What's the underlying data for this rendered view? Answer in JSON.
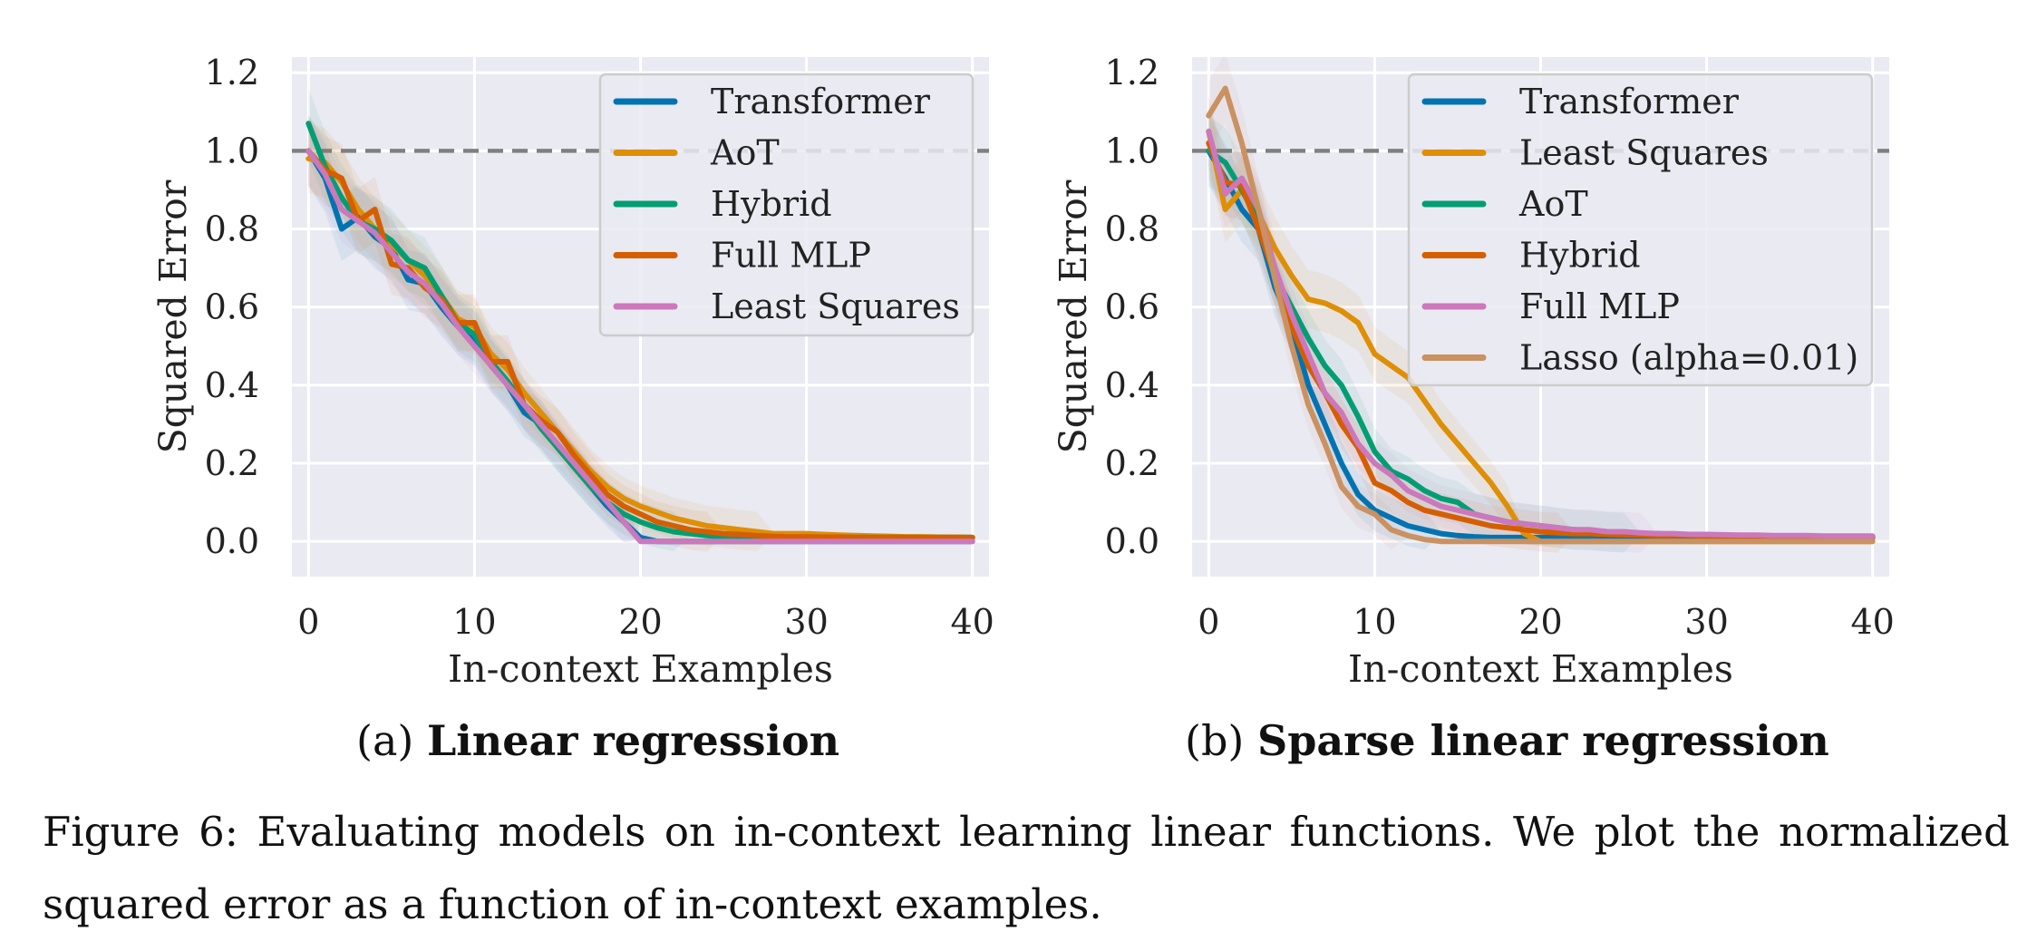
{
  "figure_caption": "Figure 6: Evaluating models on in-context learning linear functions. We plot the normalized squared error as a function of in-context examples.",
  "colors": {
    "background": "#EAEAF2",
    "grid": "#FFFFFF",
    "blue": "#0173B2",
    "orange": "#DE8F05",
    "green": "#029E73",
    "red_orange": "#D55E00",
    "pink": "#CC78BC",
    "tan": "#CA9161",
    "baseline": "#808080"
  },
  "chart_data": [
    {
      "type": "line",
      "panel_label": "(a)",
      "subtitle": "Linear regression",
      "xlabel": "In-context Examples",
      "ylabel": "Squared Error",
      "xlim": [
        -1,
        41
      ],
      "ylim": [
        -0.09,
        1.24
      ],
      "xticks": [
        0,
        10,
        20,
        30,
        40
      ],
      "yticks": [
        0.0,
        0.2,
        0.4,
        0.6,
        0.8,
        1.0,
        1.2
      ],
      "grid": true,
      "legend_position": "top-right",
      "reference_line": {
        "y": 1.0,
        "style": "dashed"
      },
      "x": [
        0,
        1,
        2,
        3,
        4,
        5,
        6,
        7,
        8,
        9,
        10,
        11,
        12,
        13,
        14,
        15,
        16,
        17,
        18,
        19,
        20,
        21,
        22,
        23,
        24,
        25,
        26,
        27,
        28,
        29,
        30,
        31,
        32,
        33,
        34,
        35,
        36,
        37,
        38,
        39,
        40
      ],
      "series": [
        {
          "name": "Transformer",
          "color": "#0173B2",
          "values": [
            1.0,
            0.93,
            0.8,
            0.83,
            0.78,
            0.75,
            0.67,
            0.66,
            0.6,
            0.55,
            0.52,
            0.45,
            0.4,
            0.33,
            0.3,
            0.24,
            0.19,
            0.14,
            0.09,
            0.05,
            0.01,
            0.0,
            0.0,
            0.0,
            0.0,
            0.0,
            0.0,
            0.0,
            0.0,
            0.0,
            0.0,
            0.0,
            0.0,
            0.0,
            0.0,
            0.0,
            0.0,
            0.0,
            0.0,
            0.0,
            0.0
          ]
        },
        {
          "name": "AoT",
          "color": "#DE8F05",
          "values": [
            0.98,
            0.97,
            0.92,
            0.85,
            0.8,
            0.76,
            0.72,
            0.68,
            0.63,
            0.57,
            0.55,
            0.48,
            0.44,
            0.38,
            0.33,
            0.28,
            0.23,
            0.18,
            0.14,
            0.11,
            0.09,
            0.075,
            0.06,
            0.05,
            0.04,
            0.035,
            0.03,
            0.025,
            0.02,
            0.02,
            0.02,
            0.018,
            0.016,
            0.015,
            0.014,
            0.013,
            0.012,
            0.012,
            0.011,
            0.011,
            0.01
          ]
        },
        {
          "name": "Hybrid",
          "color": "#029E73",
          "values": [
            1.07,
            0.96,
            0.88,
            0.82,
            0.8,
            0.77,
            0.72,
            0.7,
            0.63,
            0.56,
            0.53,
            0.46,
            0.41,
            0.35,
            0.29,
            0.24,
            0.19,
            0.14,
            0.1,
            0.07,
            0.05,
            0.035,
            0.025,
            0.02,
            0.015,
            0.012,
            0.01,
            0.01,
            0.01,
            0.01,
            0.01,
            0.01,
            0.01,
            0.01,
            0.01,
            0.01,
            0.01,
            0.01,
            0.01,
            0.01,
            0.01
          ]
        },
        {
          "name": "Full MLP",
          "color": "#D55E00",
          "values": [
            1.0,
            0.95,
            0.93,
            0.82,
            0.85,
            0.71,
            0.7,
            0.65,
            0.62,
            0.56,
            0.56,
            0.46,
            0.46,
            0.35,
            0.31,
            0.28,
            0.22,
            0.17,
            0.12,
            0.09,
            0.07,
            0.05,
            0.04,
            0.03,
            0.025,
            0.02,
            0.018,
            0.015,
            0.013,
            0.012,
            0.012,
            0.011,
            0.011,
            0.01,
            0.01,
            0.01,
            0.01,
            0.01,
            0.01,
            0.01,
            0.01
          ]
        },
        {
          "name": "Least Squares",
          "color": "#CC78BC",
          "values": [
            1.0,
            0.94,
            0.85,
            0.82,
            0.79,
            0.74,
            0.69,
            0.66,
            0.61,
            0.55,
            0.5,
            0.45,
            0.4,
            0.35,
            0.3,
            0.25,
            0.2,
            0.15,
            0.1,
            0.05,
            0.0,
            0.0,
            0.0,
            0.0,
            0.0,
            0.0,
            0.0,
            0.0,
            0.0,
            0.0,
            0.0,
            0.0,
            0.0,
            0.0,
            0.0,
            0.0,
            0.0,
            0.0,
            0.0,
            0.0,
            0.0
          ]
        }
      ]
    },
    {
      "type": "line",
      "panel_label": "(b)",
      "subtitle": "Sparse linear regression",
      "xlabel": "In-context Examples",
      "ylabel": "Squared Error",
      "xlim": [
        -1,
        41
      ],
      "ylim": [
        -0.09,
        1.24
      ],
      "xticks": [
        0,
        10,
        20,
        30,
        40
      ],
      "yticks": [
        0.0,
        0.2,
        0.4,
        0.6,
        0.8,
        1.0,
        1.2
      ],
      "grid": true,
      "legend_position": "top-right",
      "reference_line": {
        "y": 1.0,
        "style": "dashed"
      },
      "x": [
        0,
        1,
        2,
        3,
        4,
        5,
        6,
        7,
        8,
        9,
        10,
        11,
        12,
        13,
        14,
        15,
        16,
        17,
        18,
        19,
        20,
        21,
        22,
        23,
        24,
        25,
        26,
        27,
        28,
        29,
        30,
        31,
        32,
        33,
        34,
        35,
        36,
        37,
        38,
        39,
        40
      ],
      "series": [
        {
          "name": "Transformer",
          "color": "#0173B2",
          "values": [
            1.0,
            0.93,
            0.85,
            0.8,
            0.65,
            0.55,
            0.4,
            0.3,
            0.2,
            0.12,
            0.08,
            0.06,
            0.04,
            0.03,
            0.02,
            0.015,
            0.012,
            0.01,
            0.01,
            0.01,
            0.01,
            0.01,
            0.01,
            0.01,
            0.01,
            0.01,
            0.01,
            0.01,
            0.01,
            0.01,
            0.01,
            0.01,
            0.01,
            0.01,
            0.01,
            0.01,
            0.01,
            0.01,
            0.01,
            0.01,
            0.01
          ]
        },
        {
          "name": "Least Squares",
          "color": "#DE8F05",
          "values": [
            1.05,
            0.85,
            0.9,
            0.84,
            0.75,
            0.68,
            0.62,
            0.61,
            0.59,
            0.56,
            0.48,
            0.45,
            0.42,
            0.36,
            0.3,
            0.25,
            0.2,
            0.15,
            0.09,
            0.02,
            0.0,
            0.0,
            0.0,
            0.0,
            0.0,
            0.0,
            0.0,
            0.0,
            0.0,
            0.0,
            0.0,
            0.0,
            0.0,
            0.0,
            0.0,
            0.0,
            0.0,
            0.0,
            0.0,
            0.0,
            0.0
          ]
        },
        {
          "name": "AoT",
          "color": "#029E73",
          "values": [
            1.0,
            0.97,
            0.9,
            0.82,
            0.68,
            0.6,
            0.52,
            0.45,
            0.4,
            0.32,
            0.23,
            0.18,
            0.16,
            0.13,
            0.11,
            0.1,
            0.07,
            0.06,
            0.05,
            0.045,
            0.04,
            0.035,
            0.03,
            0.028,
            0.025,
            0.022,
            0.02,
            0.02,
            0.018,
            0.017,
            0.016,
            0.015,
            0.015,
            0.015,
            0.014,
            0.014,
            0.013,
            0.013,
            0.013,
            0.012,
            0.012
          ]
        },
        {
          "name": "Hybrid",
          "color": "#D55E00",
          "values": [
            1.02,
            0.92,
            0.91,
            0.8,
            0.68,
            0.55,
            0.45,
            0.38,
            0.3,
            0.24,
            0.15,
            0.13,
            0.1,
            0.08,
            0.07,
            0.06,
            0.05,
            0.04,
            0.035,
            0.03,
            0.025,
            0.022,
            0.02,
            0.02,
            0.018,
            0.017,
            0.016,
            0.015,
            0.015,
            0.015,
            0.014,
            0.014,
            0.013,
            0.013,
            0.013,
            0.012,
            0.012,
            0.012,
            0.012,
            0.012,
            0.012
          ]
        },
        {
          "name": "Full MLP",
          "color": "#CC78BC",
          "values": [
            1.05,
            0.89,
            0.93,
            0.85,
            0.7,
            0.58,
            0.48,
            0.38,
            0.33,
            0.25,
            0.2,
            0.17,
            0.13,
            0.11,
            0.09,
            0.08,
            0.07,
            0.06,
            0.05,
            0.045,
            0.04,
            0.035,
            0.03,
            0.03,
            0.025,
            0.025,
            0.022,
            0.02,
            0.02,
            0.018,
            0.018,
            0.017,
            0.016,
            0.016,
            0.015,
            0.015,
            0.015,
            0.014,
            0.014,
            0.014,
            0.014
          ]
        },
        {
          "name": "Lasso (alpha=0.01)",
          "color": "#CA9161",
          "values": [
            1.09,
            1.16,
            1.02,
            0.85,
            0.67,
            0.5,
            0.35,
            0.25,
            0.14,
            0.09,
            0.07,
            0.03,
            0.015,
            0.005,
            0.0,
            0.0,
            0.0,
            0.0,
            0.0,
            0.0,
            0.0,
            0.0,
            0.0,
            0.0,
            0.0,
            0.0,
            0.0,
            0.0,
            0.0,
            0.0,
            0.0,
            0.0,
            0.0,
            0.0,
            0.0,
            0.0,
            0.0,
            0.0,
            0.0,
            0.0,
            0.0
          ]
        }
      ]
    }
  ]
}
